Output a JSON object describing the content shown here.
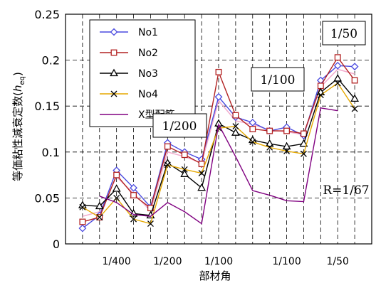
{
  "chart_data": {
    "type": "line",
    "title": "",
    "xlabel": "部材角",
    "ylabel": "等価粘性減衰定数(heq)",
    "ylabel_main": "等価粘性減衰定数(",
    "ylabel_var": "h",
    "ylabel_sub": "eq",
    "ylabel_end": ")",
    "ylim": [
      0,
      0.25
    ],
    "y_ticks": [
      "0",
      "0.05",
      "0.1",
      "0.15",
      "0.2",
      "0.25"
    ],
    "x_tick_labels": [
      "1/400",
      "1/200",
      "1/100",
      "1/100",
      "1/50"
    ],
    "x": [
      1,
      2,
      3,
      4,
      5,
      6,
      7,
      8,
      9,
      10,
      11,
      12,
      13,
      14,
      15,
      16,
      17
    ],
    "grid": true,
    "legend_position": "top-left",
    "series": [
      {
        "name": "No1",
        "color": "#4a4adf",
        "marker": "diamond",
        "values": [
          0.017,
          0.031,
          0.08,
          0.061,
          0.04,
          0.11,
          0.1,
          0.092,
          0.16,
          0.138,
          0.132,
          0.123,
          0.127,
          0.118,
          0.178,
          0.194,
          0.193
        ]
      },
      {
        "name": "No2",
        "color": "#b22222",
        "marker": "square",
        "values": [
          0.024,
          0.029,
          0.075,
          0.053,
          0.039,
          0.106,
          0.097,
          0.087,
          0.187,
          0.14,
          0.125,
          0.123,
          0.123,
          0.12,
          0.172,
          0.203,
          0.178
        ]
      },
      {
        "name": "No3",
        "color": "#000000",
        "marker": "triangle",
        "values": [
          0.042,
          0.041,
          0.06,
          0.033,
          0.031,
          0.088,
          0.076,
          0.061,
          0.131,
          0.121,
          0.113,
          0.109,
          0.106,
          0.109,
          0.165,
          0.18,
          0.158
        ]
      },
      {
        "name": "No4",
        "color": "#e6a800",
        "marker": "x",
        "values": [
          0.04,
          0.029,
          0.05,
          0.027,
          0.022,
          0.086,
          0.081,
          0.077,
          0.126,
          0.128,
          0.111,
          0.105,
          0.101,
          0.098,
          0.162,
          0.175,
          0.147
        ]
      },
      {
        "name": "X型配筋",
        "color": "#800080",
        "marker": "none",
        "values": [
          null,
          0.052,
          0.045,
          0.032,
          0.03,
          0.045,
          0.035,
          0.022,
          0.13,
          0.095,
          0.058,
          0.053,
          0.047,
          0.046,
          0.148,
          0.145,
          null
        ]
      }
    ],
    "background_line": {
      "color": "#f2aacc",
      "values": [
        0.03,
        0.035,
        0.073,
        0.055,
        0.036,
        0.1,
        0.095,
        0.088,
        0.156,
        0.134,
        0.13,
        0.124,
        0.122,
        0.119,
        0.171,
        0.19,
        0.185
      ]
    },
    "annotations": [
      "1/50",
      "1/100",
      "1/200",
      "R=1/67"
    ]
  }
}
